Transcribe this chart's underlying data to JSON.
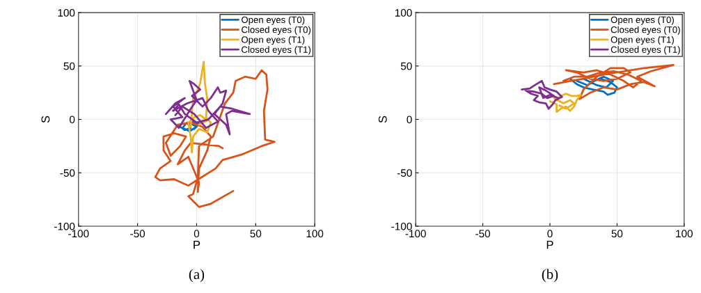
{
  "chart_data": [
    {
      "type": "line",
      "xlabel": "P",
      "ylabel": "S",
      "xlim": [
        -100,
        100
      ],
      "ylim": [
        -100,
        100
      ],
      "xticks": [
        -100,
        -50,
        0,
        50,
        100
      ],
      "yticks": [
        -100,
        -50,
        0,
        50,
        100
      ],
      "grid": true,
      "legend": "top right",
      "annotations": [
        "(a)"
      ],
      "series": [
        {
          "name": "Open eyes (T0)",
          "color": "#0072bd",
          "x": [
            -15,
            -10,
            -5,
            -8,
            -3,
            0,
            -6,
            -12,
            -9,
            -4,
            2,
            -2
          ],
          "values": [
            -6,
            -10,
            -8,
            -3,
            -5,
            -7,
            -11,
            -8,
            -4,
            -2,
            -4,
            -9
          ]
        },
        {
          "name": "Closed eyes (T0)",
          "color": "#d95319",
          "x": [
            31,
            12,
            2,
            -7,
            -3,
            1,
            2,
            14,
            24,
            31,
            33,
            41,
            50,
            55,
            59,
            60,
            57,
            58,
            66,
            55,
            38,
            22,
            16,
            3,
            -7,
            -19,
            -31,
            -35,
            -31,
            -22,
            -28,
            -28,
            -19,
            -9,
            -14,
            -22,
            -26,
            -16,
            -5,
            5,
            12,
            9,
            2,
            1,
            2,
            -7,
            -16,
            -10,
            -5,
            19,
            22
          ],
          "values": [
            -67,
            -79,
            -82,
            -72,
            -70,
            -55,
            -25,
            -16,
            15,
            25,
            36,
            40,
            38,
            46,
            42,
            28,
            8,
            -19,
            -21,
            -25,
            -33,
            -38,
            -46,
            -55,
            -62,
            -56,
            -57,
            -54,
            -46,
            -39,
            -29,
            -16,
            -13,
            -16,
            -25,
            -34,
            -22,
            -5,
            -3,
            -7,
            -16,
            -29,
            -46,
            -68,
            -59,
            -35,
            -42,
            -29,
            -22,
            -25,
            -27
          ]
        },
        {
          "name": "Open eyes (T1)",
          "color": "#edb120",
          "x": [
            -5,
            -3,
            0,
            3,
            6,
            7,
            9,
            8,
            12,
            9,
            2,
            -3,
            -4,
            -5,
            -7,
            -2,
            3,
            9,
            2
          ],
          "values": [
            -7,
            19,
            25,
            34,
            54,
            34,
            19,
            2,
            -3,
            -12,
            -9,
            -16,
            -31,
            -17,
            -3,
            2,
            4,
            -1,
            -5
          ]
        },
        {
          "name": "Closed eyes (T1)",
          "color": "#7e2f8e",
          "x": [
            -26,
            -18,
            -10,
            -20,
            -12,
            -22,
            -15,
            -5,
            0,
            -6,
            -2,
            3,
            -4,
            5,
            12,
            18,
            20,
            25,
            22,
            15,
            25,
            28,
            25,
            30,
            45,
            30,
            20,
            10,
            0,
            -10,
            -15,
            -20,
            -8,
            5,
            10,
            18,
            8,
            -2,
            -12,
            -18
          ],
          "values": [
            5,
            15,
            20,
            12,
            2,
            0,
            -8,
            10,
            18,
            36,
            33,
            28,
            22,
            12,
            20,
            30,
            25,
            27,
            15,
            5,
            -5,
            -14,
            5,
            8,
            5,
            10,
            12,
            0,
            -3,
            5,
            14,
            8,
            15,
            20,
            8,
            -2,
            -8,
            5,
            12,
            4
          ]
        }
      ]
    },
    {
      "type": "line",
      "xlabel": "P",
      "ylabel": "S",
      "xlim": [
        -100,
        100
      ],
      "ylim": [
        -100,
        100
      ],
      "xticks": [
        -100,
        -50,
        0,
        50,
        100
      ],
      "yticks": [
        -100,
        -50,
        0,
        50,
        100
      ],
      "grid": true,
      "legend": "top right",
      "annotations": [
        "(b)"
      ],
      "series": [
        {
          "name": "Open eyes (T0)",
          "color": "#0072bd",
          "x": [
            15,
            20,
            25,
            32,
            40,
            43,
            48,
            50,
            45,
            38,
            30,
            25,
            35,
            42,
            47,
            40,
            33,
            28,
            20
          ],
          "values": [
            38,
            33,
            30,
            28,
            26,
            23,
            25,
            30,
            35,
            38,
            35,
            38,
            32,
            30,
            36,
            40,
            36,
            32,
            36
          ]
        },
        {
          "name": "Closed eyes (T0)",
          "color": "#d95319",
          "x": [
            3,
            15,
            25,
            40,
            55,
            70,
            92,
            75,
            65,
            78,
            70,
            60,
            50,
            40,
            30,
            22,
            25,
            35,
            45,
            55,
            60,
            50,
            40,
            30,
            20,
            12,
            25,
            35,
            45,
            55,
            62,
            68,
            58,
            48,
            38,
            28,
            18,
            10
          ],
          "values": [
            33,
            36,
            38,
            42,
            45,
            48,
            51,
            45,
            40,
            31,
            35,
            33,
            28,
            30,
            25,
            19,
            28,
            40,
            48,
            48,
            44,
            38,
            36,
            38,
            44,
            46,
            44,
            46,
            42,
            36,
            30,
            36,
            42,
            45,
            44,
            40,
            40,
            36
          ]
        },
        {
          "name": "Open eyes (T1)",
          "color": "#edb120",
          "x": [
            0,
            5,
            5,
            8,
            12,
            15,
            18,
            20,
            23,
            20,
            16,
            12,
            8,
            5,
            3,
            10,
            15,
            18,
            12,
            7
          ],
          "values": [
            17,
            14,
            7,
            10,
            12,
            8,
            12,
            18,
            23,
            22,
            22,
            24,
            22,
            18,
            20,
            15,
            18,
            15,
            10,
            13
          ]
        },
        {
          "name": "Closed eyes (T1)",
          "color": "#7e2f8e",
          "x": [
            -21,
            -15,
            -10,
            -6,
            -4,
            0,
            5,
            9,
            4,
            2,
            -1,
            -3,
            -8,
            -12,
            -9,
            -14,
            -18,
            -12,
            -6,
            -2,
            3,
            -3,
            -8,
            -5,
            0,
            6
          ],
          "values": [
            28,
            29,
            33,
            36,
            30,
            28,
            26,
            21,
            18,
            14,
            10,
            15,
            16,
            18,
            22,
            24,
            27,
            26,
            24,
            20,
            22,
            27,
            30,
            20,
            23,
            20
          ]
        }
      ]
    }
  ]
}
